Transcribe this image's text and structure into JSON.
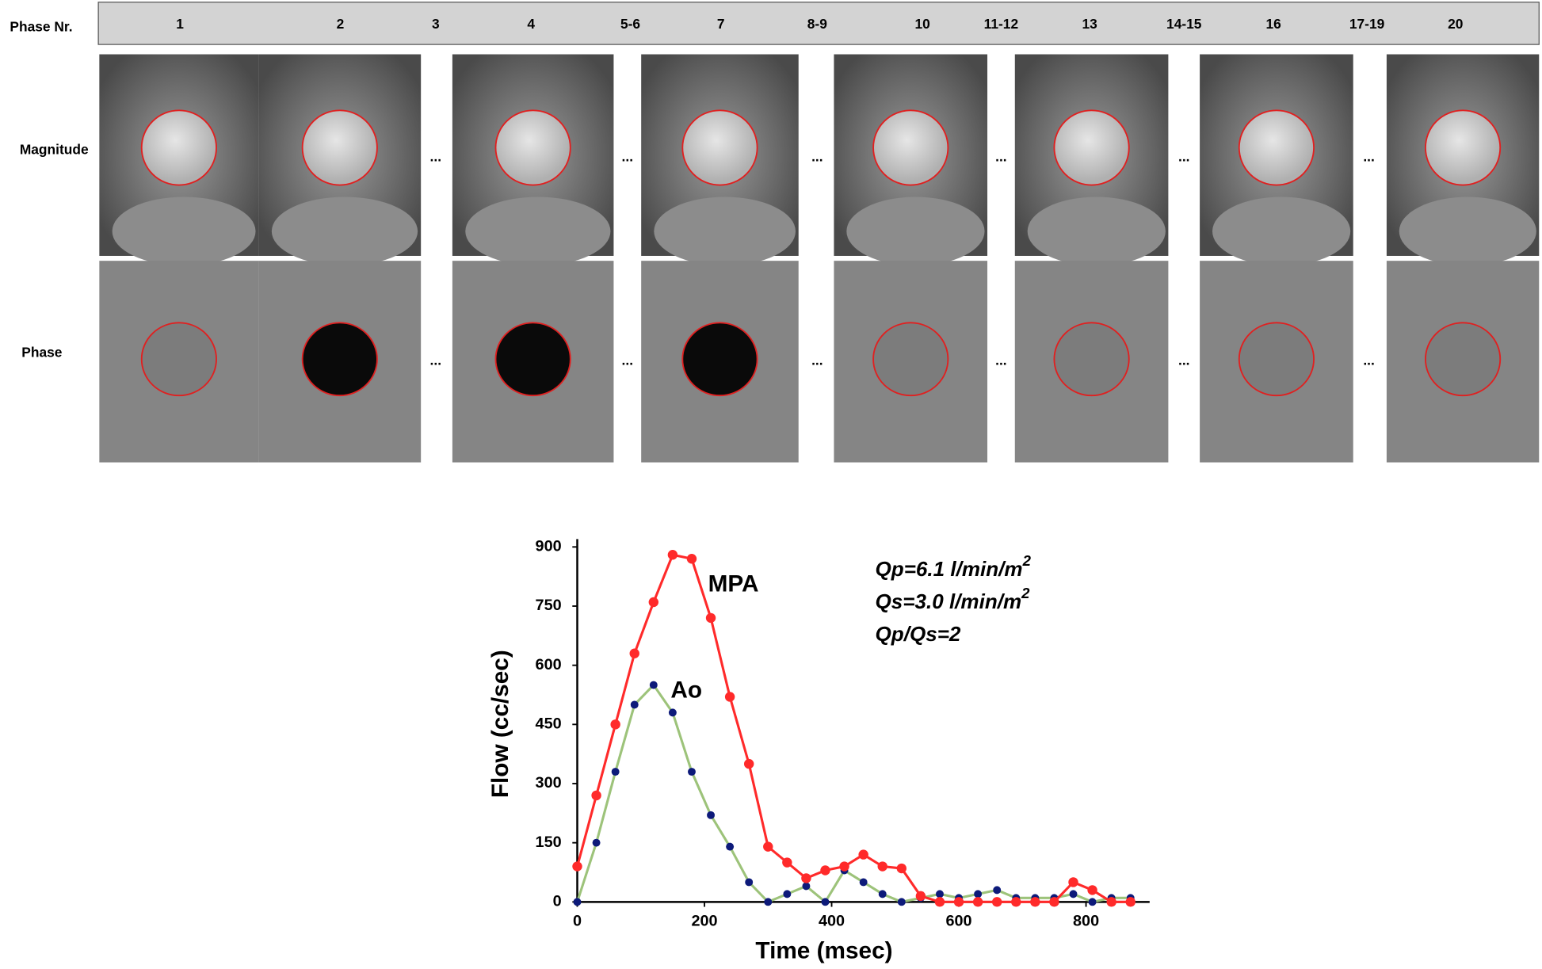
{
  "header_label": "Phase Nr.",
  "phases": [
    "1",
    "2",
    "3",
    "4",
    "5-6",
    "7",
    "8-9",
    "10",
    "11-12",
    "13",
    "14-15",
    "16",
    "17-19",
    "20"
  ],
  "row_labels": [
    "Magnitude",
    "Phase"
  ],
  "separator": "...",
  "chart_data": {
    "type": "line",
    "x": [
      0,
      30,
      60,
      90,
      120,
      150,
      180,
      210,
      240,
      270,
      300,
      330,
      360,
      390,
      420,
      450,
      480,
      510,
      540,
      570,
      600,
      630,
      660,
      690,
      720,
      750,
      780,
      810,
      840,
      870
    ],
    "series": [
      {
        "name": "MPA",
        "color": "#ff2a2a",
        "marker_color": "#ff2a2a",
        "values": [
          90,
          270,
          450,
          630,
          760,
          880,
          870,
          720,
          520,
          350,
          140,
          100,
          60,
          80,
          90,
          120,
          90,
          85,
          15,
          0,
          0,
          0,
          0,
          0,
          0,
          0,
          50,
          30,
          0,
          0
        ]
      },
      {
        "name": "Ao",
        "color": "#9dc37a",
        "marker_color": "#0d1a7a",
        "values": [
          0,
          150,
          330,
          500,
          550,
          480,
          330,
          220,
          140,
          50,
          0,
          20,
          40,
          0,
          80,
          50,
          20,
          0,
          10,
          20,
          10,
          20,
          30,
          10,
          10,
          10,
          20,
          0,
          10,
          10
        ]
      }
    ],
    "xlabel": "Time (msec)",
    "ylabel": "Flow (cc/sec)",
    "xlim": [
      0,
      900
    ],
    "xticks": [
      0,
      200,
      400,
      600,
      800
    ],
    "ylim": [
      0,
      900
    ],
    "yticks": [
      0,
      150,
      300,
      450,
      600,
      750,
      900
    ],
    "annotations": [
      {
        "text": "Qp=6.1 l/min/m",
        "sup": "2"
      },
      {
        "text": "Qs=3.0 l/min/m",
        "sup": "2"
      },
      {
        "text": "Qp/Qs=2"
      }
    ]
  }
}
